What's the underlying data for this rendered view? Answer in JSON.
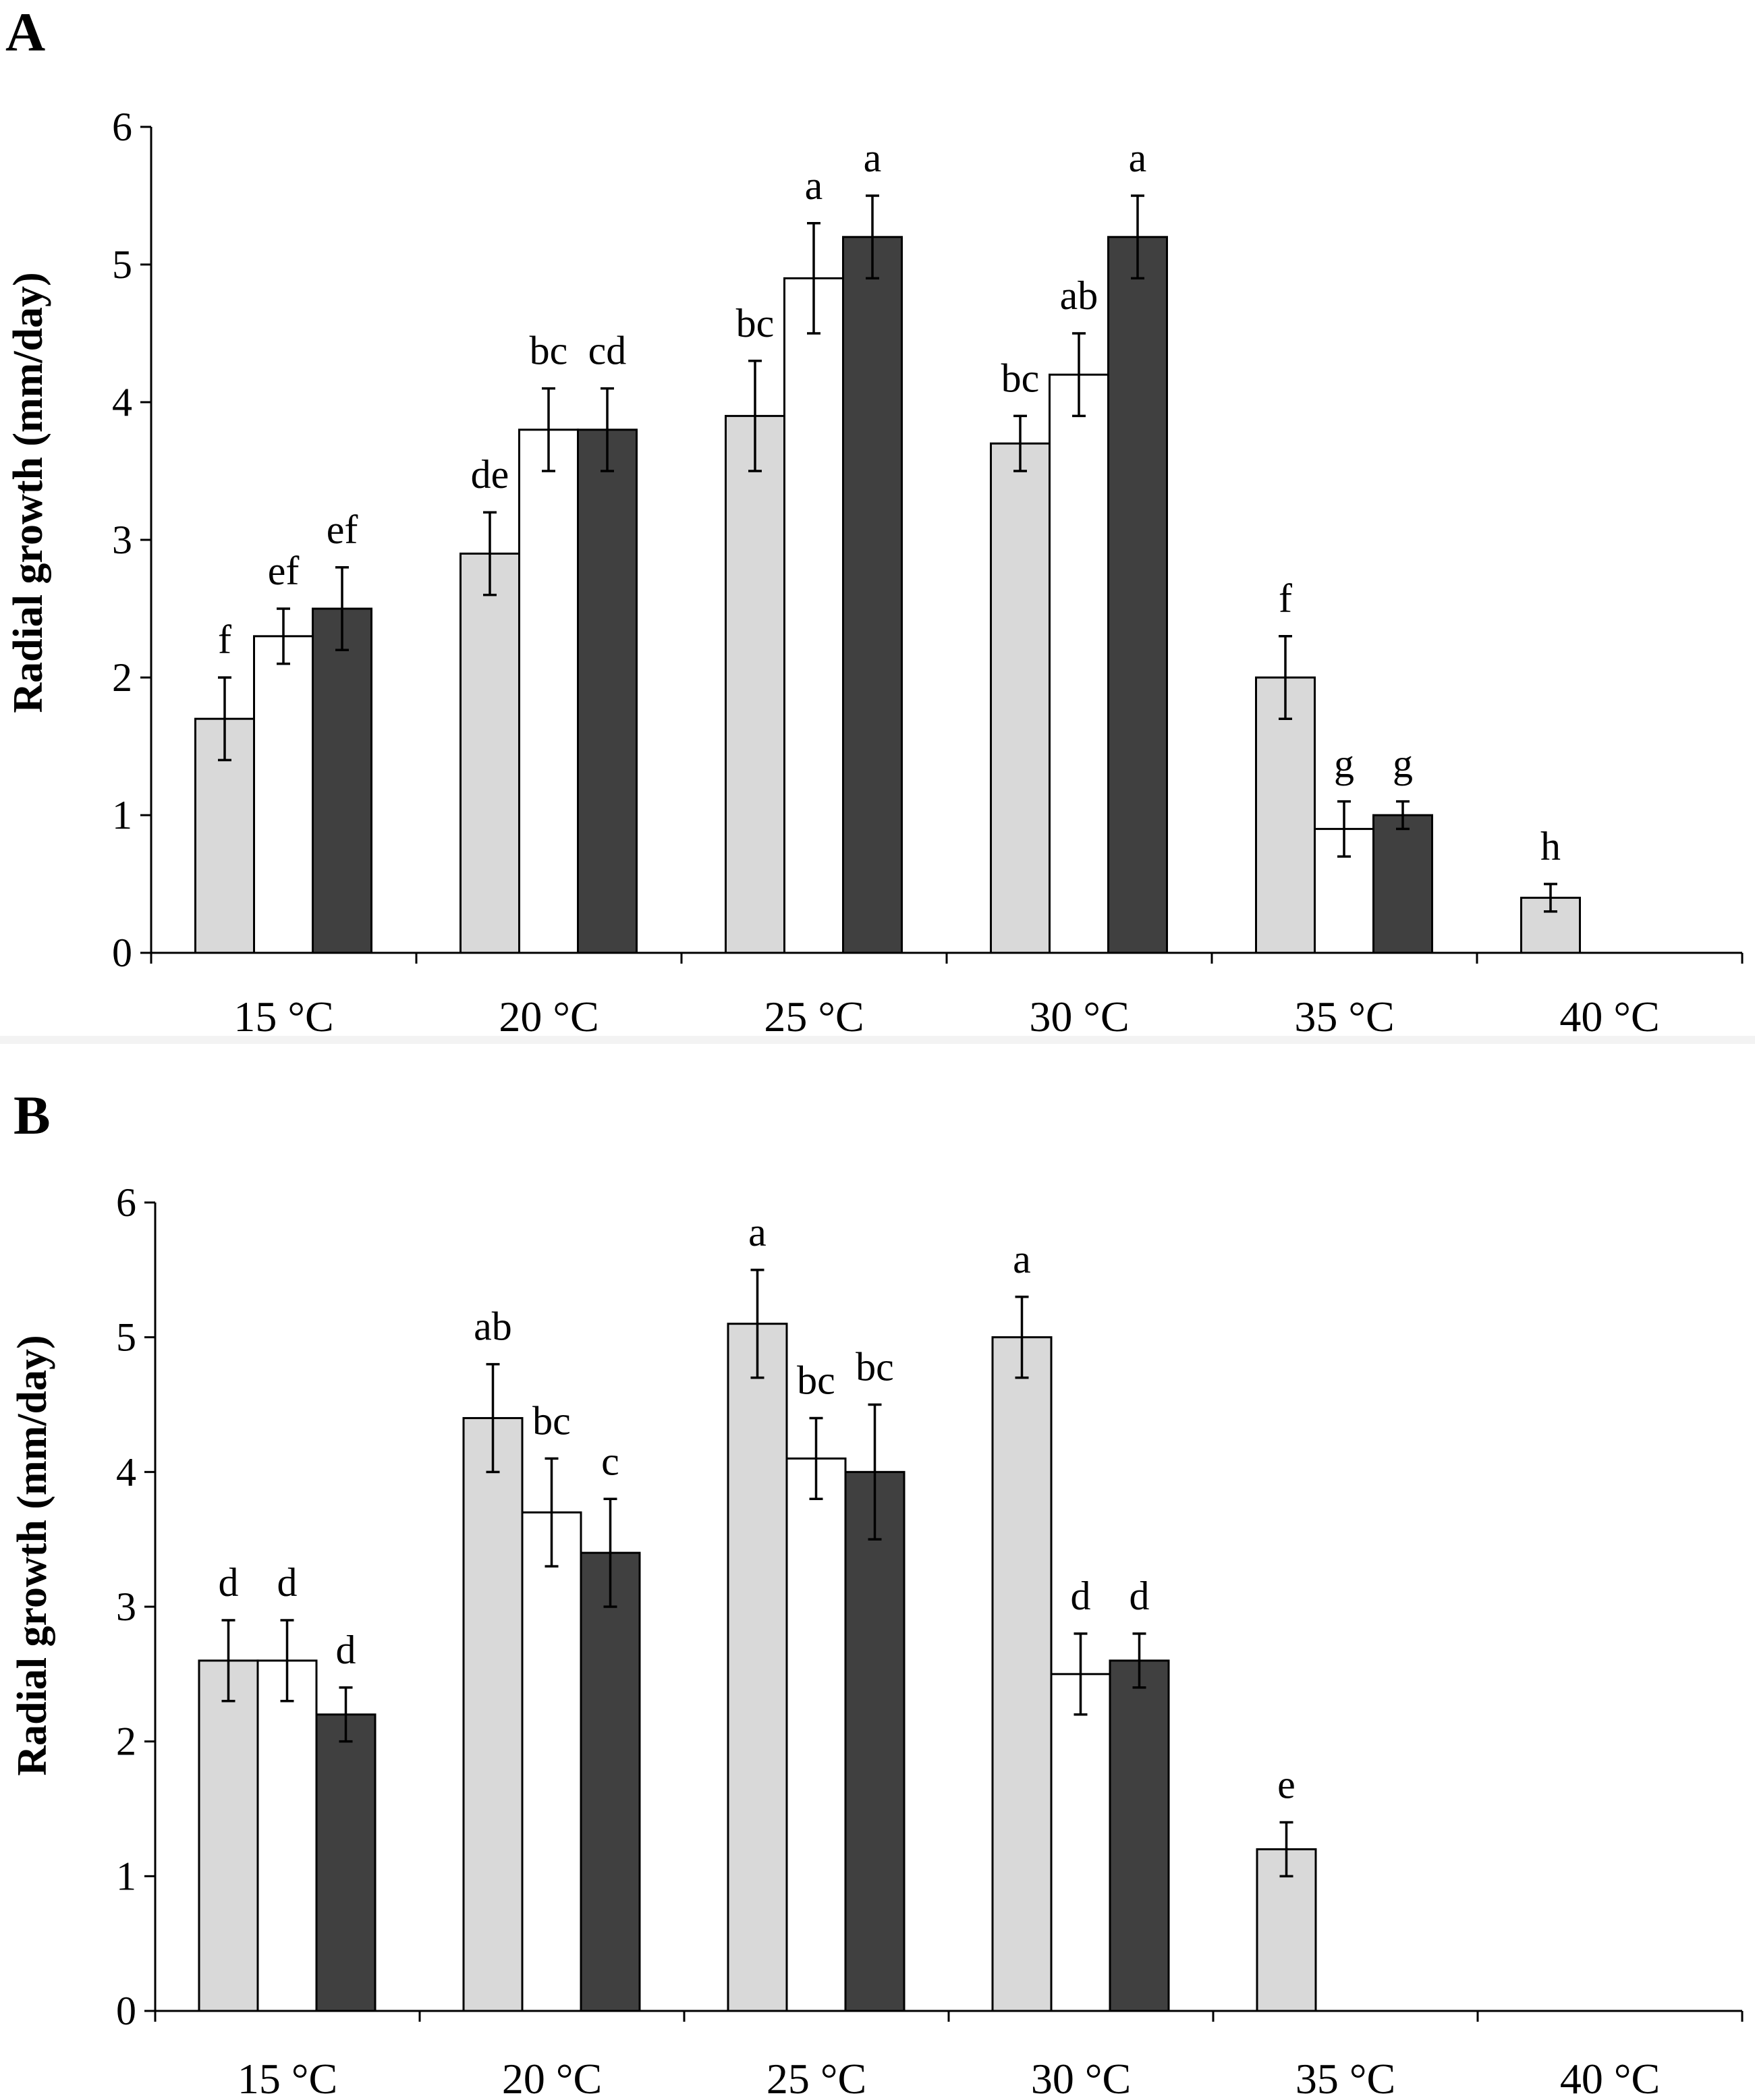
{
  "chart_data": [
    {
      "panel": "A",
      "type": "bar",
      "ylabel": "Radial growth  (mm/day)",
      "ylim": [
        0,
        6
      ],
      "yticks": [
        0,
        1,
        2,
        3,
        4,
        5,
        6
      ],
      "categories": [
        "15 °C",
        "20 °C",
        "25 °C",
        "30 °C",
        "35 °C",
        "40 °C"
      ],
      "series_colors": [
        "#d9d9d9",
        "#ffffff",
        "#404040"
      ],
      "series": [
        {
          "values": [
            1.7,
            2.9,
            3.9,
            3.7,
            2.0,
            0.4
          ],
          "errors": [
            0.3,
            0.3,
            0.4,
            0.2,
            0.3,
            0.1
          ],
          "labels": [
            "f",
            "de",
            "bc",
            "bc",
            "f",
            "h"
          ]
        },
        {
          "values": [
            2.3,
            3.8,
            4.9,
            4.2,
            0.9,
            null
          ],
          "errors": [
            0.2,
            0.3,
            0.4,
            0.3,
            0.2,
            null
          ],
          "labels": [
            "ef",
            "bc",
            "a",
            "ab",
            "g",
            null
          ]
        },
        {
          "values": [
            2.5,
            3.8,
            5.2,
            5.2,
            1.0,
            null
          ],
          "errors": [
            0.3,
            0.3,
            0.3,
            0.3,
            0.1,
            null
          ],
          "labels": [
            "ef",
            "cd",
            "a",
            "a",
            "g",
            null
          ]
        }
      ]
    },
    {
      "panel": "B",
      "type": "bar",
      "ylabel": "Radial growth (mm/day)",
      "ylim": [
        0,
        6
      ],
      "yticks": [
        0,
        1,
        2,
        3,
        4,
        5,
        6
      ],
      "categories": [
        "15 °C",
        "20 °C",
        "25 °C",
        "30 °C",
        "35 °C",
        "40 °C"
      ],
      "series_colors": [
        "#d9d9d9",
        "#ffffff",
        "#404040"
      ],
      "series": [
        {
          "values": [
            2.6,
            4.4,
            5.1,
            5.0,
            1.2,
            null
          ],
          "errors": [
            0.3,
            0.4,
            0.4,
            0.3,
            0.2,
            null
          ],
          "labels": [
            "d",
            "ab",
            "a",
            "a",
            "e",
            null
          ]
        },
        {
          "values": [
            2.6,
            3.7,
            4.1,
            2.5,
            null,
            null
          ],
          "errors": [
            0.3,
            0.4,
            0.3,
            0.3,
            null,
            null
          ],
          "labels": [
            "d",
            "bc",
            "bc",
            "d",
            null,
            null
          ]
        },
        {
          "values": [
            2.2,
            3.4,
            4.0,
            2.6,
            null,
            null
          ],
          "errors": [
            0.2,
            0.4,
            0.5,
            0.2,
            null,
            null
          ],
          "labels": [
            "d",
            "c",
            "bc",
            "d",
            null,
            null
          ]
        }
      ]
    }
  ]
}
